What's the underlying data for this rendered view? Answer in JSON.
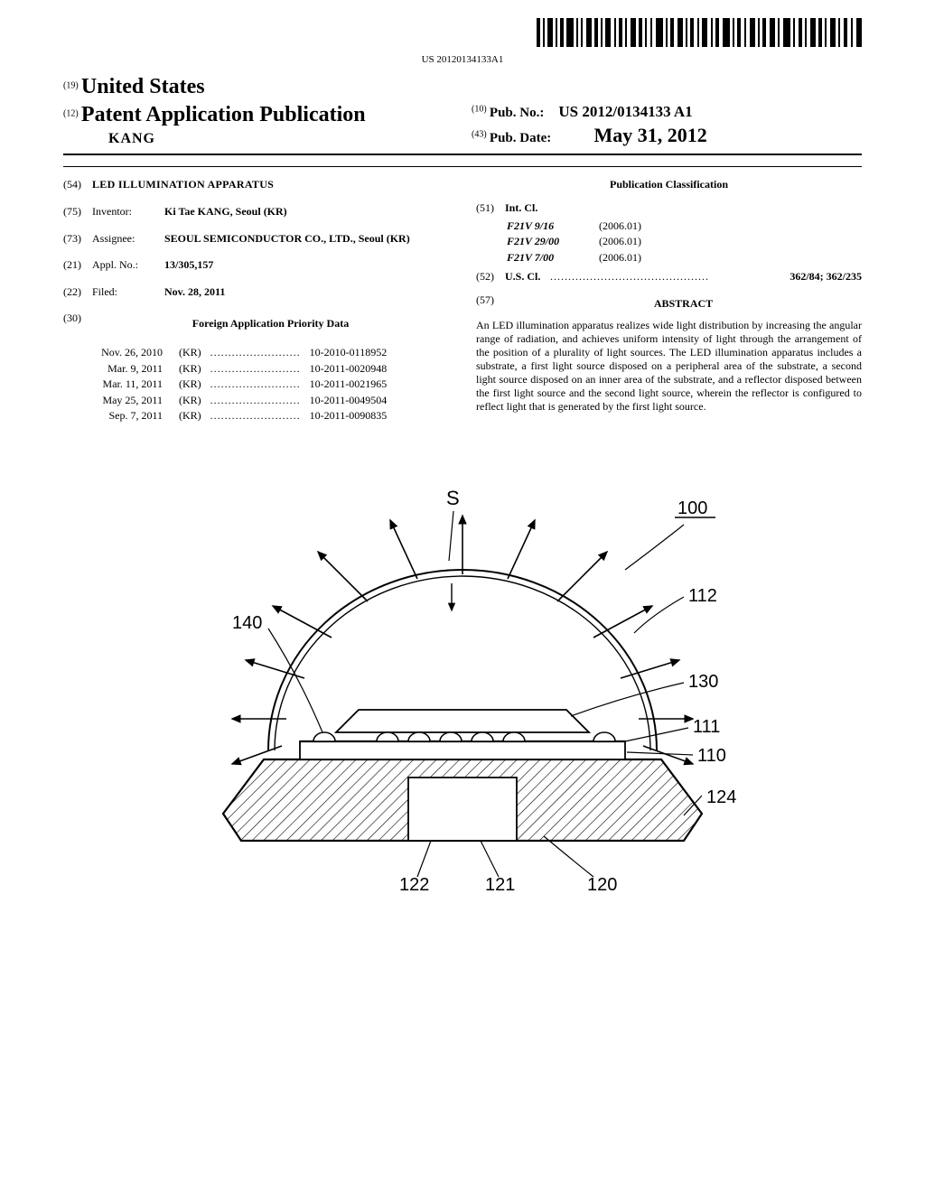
{
  "barcode": {
    "number_text": "US 20120134133A1"
  },
  "header": {
    "code19": "(19)",
    "country": "United States",
    "code12": "(12)",
    "pub_type": "Patent Application Publication",
    "inventor_surname": "KANG",
    "code10": "(10)",
    "pub_no_label": "Pub. No.:",
    "pub_no": "US 2012/0134133 A1",
    "code43": "(43)",
    "pub_date_label": "Pub. Date:",
    "pub_date": "May 31, 2012"
  },
  "left": {
    "title": {
      "code": "(54)",
      "text": "LED ILLUMINATION APPARATUS"
    },
    "inventor": {
      "code": "(75)",
      "label": "Inventor:",
      "value": "Ki Tae KANG, Seoul (KR)"
    },
    "assignee": {
      "code": "(73)",
      "label": "Assignee:",
      "value": "SEOUL SEMICONDUCTOR CO., LTD., Seoul (KR)"
    },
    "appl": {
      "code": "(21)",
      "label": "Appl. No.:",
      "value": "13/305,157"
    },
    "filed": {
      "code": "(22)",
      "label": "Filed:",
      "value": "Nov. 28, 2011"
    },
    "priority": {
      "code": "(30)",
      "heading": "Foreign Application Priority Data",
      "rows": [
        {
          "date": "Nov. 26, 2010",
          "cc": "(KR)",
          "dots": ".........................",
          "num": "10-2010-0118952"
        },
        {
          "date": "Mar. 9, 2011",
          "cc": "(KR)",
          "dots": ".........................",
          "num": "10-2011-0020948"
        },
        {
          "date": "Mar. 11, 2011",
          "cc": "(KR)",
          "dots": ".........................",
          "num": "10-2011-0021965"
        },
        {
          "date": "May 25, 2011",
          "cc": "(KR)",
          "dots": ".........................",
          "num": "10-2011-0049504"
        },
        {
          "date": "Sep. 7, 2011",
          "cc": "(KR)",
          "dots": ".........................",
          "num": "10-2011-0090835"
        }
      ]
    }
  },
  "right": {
    "classification_heading": "Publication Classification",
    "intcl": {
      "code": "(51)",
      "label": "Int. Cl.",
      "rows": [
        {
          "cls": "F21V 9/16",
          "edition": "(2006.01)"
        },
        {
          "cls": "F21V 29/00",
          "edition": "(2006.01)"
        },
        {
          "cls": "F21V 7/00",
          "edition": "(2006.01)"
        }
      ]
    },
    "uscl": {
      "code": "(52)",
      "label": "U.S. Cl.",
      "dots": "............................................",
      "value": "362/84; 362/235"
    },
    "abstract": {
      "code": "(57)",
      "heading": "ABSTRACT",
      "text": "An LED illumination apparatus realizes wide light distribution by increasing the angular range of radiation, and achieves uniform intensity of light through the arrangement of the position of a plurality of light sources. The LED illumination apparatus includes a substrate, a first light source disposed on a peripheral area of the substrate, a second light source disposed on an inner area of the substrate, and a reflector disposed between the first light source and the second light source, wherein the reflector is configured to reflect light that is generated by the first light source."
    }
  },
  "figure": {
    "labels": {
      "S": "S",
      "n100": "100",
      "n112": "112",
      "n130": "130",
      "n111": "111",
      "n110": "110",
      "n124": "124",
      "n120": "120",
      "n121": "121",
      "n122": "122",
      "n140": "140"
    },
    "style": {
      "stroke": "#000000",
      "stroke_width": 1.6,
      "stroke_heavy": 2.2,
      "hatch_spacing": 9,
      "background": "#ffffff"
    }
  }
}
